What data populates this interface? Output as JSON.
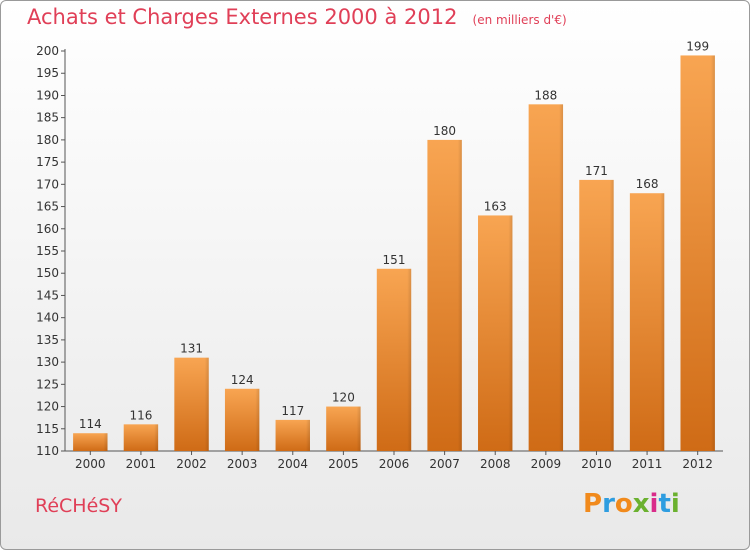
{
  "header": {
    "title": "Achats et Charges Externes 2000 à 2012",
    "subtitle": "(en milliers d'€)"
  },
  "footer": {
    "commune": "RéCHéSY",
    "brand": "Proxiti",
    "brand_colors": [
      "#f18a1c",
      "#2e9de0",
      "#f18a1c",
      "#6bb12f",
      "#d92c8a",
      "#2e9de0",
      "#6bb12f"
    ]
  },
  "colors": {
    "bar_top": "#f8a552",
    "bar_bottom": "#cf6b16",
    "accent": "#e03f57"
  },
  "chart_data": {
    "type": "bar",
    "categories": [
      "2000",
      "2001",
      "2002",
      "2003",
      "2004",
      "2005",
      "2006",
      "2007",
      "2008",
      "2009",
      "2010",
      "2011",
      "2012"
    ],
    "values": [
      114,
      116,
      131,
      124,
      117,
      120,
      151,
      180,
      163,
      188,
      171,
      168,
      199
    ],
    "title": "Achats et Charges Externes 2000 à 2012",
    "subtitle": "(en milliers d'€)",
    "xlabel": "",
    "ylabel": "",
    "ylim": [
      110,
      200
    ],
    "yticks": [
      110,
      115,
      120,
      125,
      130,
      135,
      140,
      145,
      150,
      155,
      160,
      165,
      170,
      175,
      180,
      185,
      190,
      195,
      200
    ],
    "grid": false,
    "data_labels": true
  }
}
